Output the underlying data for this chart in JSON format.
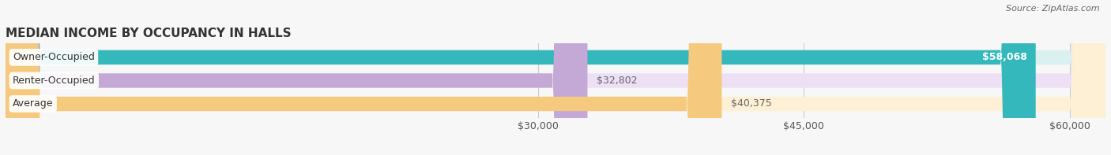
{
  "title": "MEDIAN INCOME BY OCCUPANCY IN HALLS",
  "source": "Source: ZipAtlas.com",
  "categories": [
    "Owner-Occupied",
    "Renter-Occupied",
    "Average"
  ],
  "values": [
    58068,
    32802,
    40375
  ],
  "x_min": 0,
  "x_max": 62000,
  "x_ticks": [
    30000,
    45000,
    60000
  ],
  "x_tick_labels": [
    "$30,000",
    "$45,000",
    "$60,000"
  ],
  "bar_colors": [
    "#35b8bc",
    "#c4a8d5",
    "#f5c97e"
  ],
  "bar_bg_colors": [
    "#daf0f1",
    "#ede0f5",
    "#fdf0d5"
  ],
  "label_inside_color": "#ffffff",
  "label_outside_color": "#666666",
  "bar_height": 0.62,
  "title_fontsize": 11,
  "tick_fontsize": 9,
  "label_fontsize": 9,
  "category_fontsize": 9,
  "background_color": "#f7f7f7",
  "grid_color": "#cccccc"
}
